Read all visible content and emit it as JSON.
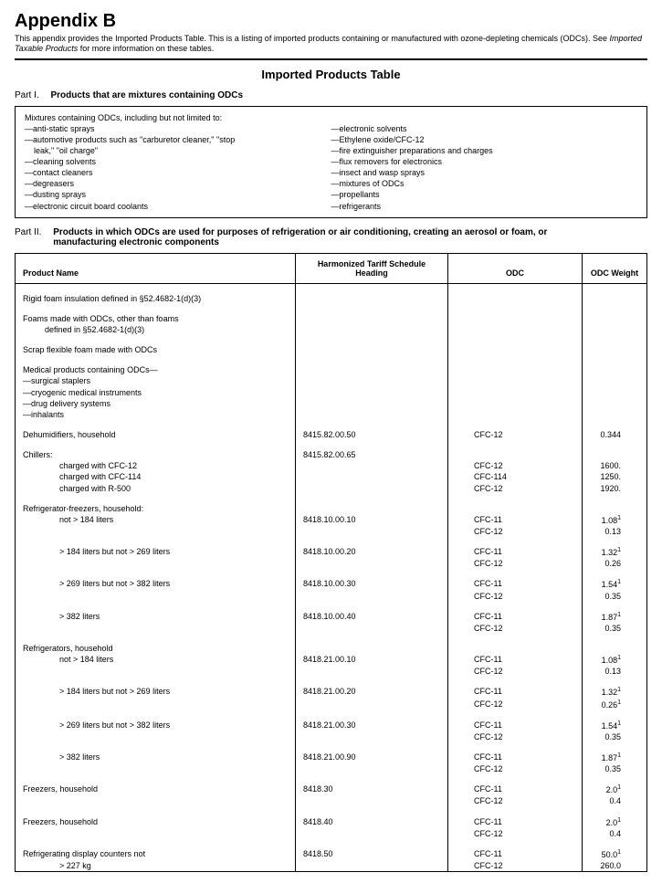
{
  "appendix": {
    "title": "Appendix B",
    "intro_before": "This appendix provides the Imported Products Table. This is a listing of imported products containing or manufactured with ozone-depleting chemicals (ODCs). See ",
    "intro_em": "Imported Taxable Products",
    "intro_after": " for more information on these tables.",
    "table_title": "Imported Products Table"
  },
  "part1": {
    "label": "Part I.",
    "desc": "Products that are mixtures containing ODCs",
    "intro": "Mixtures containing ODCs, including but not limited to:",
    "col_left": [
      "—anti-static sprays",
      "—automotive products such as \"carburetor cleaner,\" \"stop",
      "    leak,\" \"oil charge\"",
      "—cleaning solvents",
      "—contact cleaners",
      "—degreasers",
      "—dusting sprays",
      "—electronic circuit board coolants"
    ],
    "col_right": [
      "—electronic solvents",
      "—Ethylene oxide/CFC-12",
      "—fire extinguisher preparations and charges",
      "—flux removers for electronics",
      "—insect and wasp sprays",
      "—mixtures of ODCs",
      "—propellants",
      "—refrigerants"
    ]
  },
  "part2": {
    "label": "Part II.",
    "desc": "Products in which ODCs are used for purposes of refrigeration or air conditioning, creating an aerosol or foam, or manufacturing electronic components",
    "headers": {
      "name": "Product Name",
      "hts": "Harmonized Tariff Schedule Heading",
      "odc": "ODC",
      "wt": "ODC Weight"
    },
    "rows": [
      {
        "type": "spacer"
      },
      {
        "name": "Rigid foam insulation defined in §52.4682-1(d)(3)",
        "hts": "",
        "odc": "",
        "wt": ""
      },
      {
        "type": "spacer"
      },
      {
        "name": "Foams made with ODCs, other than foams",
        "hts": "",
        "odc": "",
        "wt": ""
      },
      {
        "name_indent": 1,
        "name": "defined in §52.4682-1(d)(3)",
        "hts": "",
        "odc": "",
        "wt": ""
      },
      {
        "type": "spacer"
      },
      {
        "name": "Scrap flexible foam made with ODCs",
        "hts": "",
        "odc": "",
        "wt": ""
      },
      {
        "type": "spacer"
      },
      {
        "name": "Medical products containing ODCs—",
        "hts": "",
        "odc": "",
        "wt": ""
      },
      {
        "name": "—surgical staplers",
        "hts": "",
        "odc": "",
        "wt": ""
      },
      {
        "name": "—cryogenic medical instruments",
        "hts": "",
        "odc": "",
        "wt": ""
      },
      {
        "name": "—drug delivery systems",
        "hts": "",
        "odc": "",
        "wt": ""
      },
      {
        "name": "—inhalants",
        "hts": "",
        "odc": "",
        "wt": ""
      },
      {
        "type": "spacer"
      },
      {
        "name": "Dehumidifiers, household",
        "hts": "8415.82.00.50",
        "odc": "CFC-12",
        "wt": "0.344"
      },
      {
        "type": "spacer"
      },
      {
        "name": "Chillers:",
        "hts": "8415.82.00.65",
        "odc": "",
        "wt": ""
      },
      {
        "name_indent": 2,
        "name": "charged with CFC-12",
        "hts": "",
        "odc": "CFC-12",
        "wt": "1600."
      },
      {
        "name_indent": 2,
        "name": "charged with CFC-114",
        "hts": "",
        "odc": "CFC-114",
        "wt": "1250."
      },
      {
        "name_indent": 2,
        "name": "charged with R-500",
        "hts": "",
        "odc": "CFC-12",
        "wt": "1920."
      },
      {
        "type": "spacer"
      },
      {
        "name": "Refrigerator-freezers, household:",
        "hts": "",
        "odc": "",
        "wt": ""
      },
      {
        "name_indent": 2,
        "name": "not > 184 liters",
        "hts": "8418.10.00.10",
        "odc": "CFC-11",
        "wt": "1.08",
        "sup": "1"
      },
      {
        "name": "",
        "hts": "",
        "odc": "CFC-12",
        "wt": "0.13"
      },
      {
        "type": "halfspacer"
      },
      {
        "name_indent": 2,
        "name": "> 184 liters but not > 269 liters",
        "hts": "8418.10.00.20",
        "odc": "CFC-11",
        "wt": "1.32",
        "sup": "1"
      },
      {
        "name": "",
        "hts": "",
        "odc": "CFC-12",
        "wt": "0.26"
      },
      {
        "type": "halfspacer"
      },
      {
        "name_indent": 2,
        "name": "> 269 liters but not > 382 liters",
        "hts": "8418.10.00.30",
        "odc": "CFC-11",
        "wt": "1.54",
        "sup": "1"
      },
      {
        "name": "",
        "hts": "",
        "odc": "CFC-12",
        "wt": "0.35"
      },
      {
        "type": "halfspacer"
      },
      {
        "name_indent": 2,
        "name": "> 382 liters",
        "hts": "8418.10.00.40",
        "odc": "CFC-11",
        "wt": "1.87",
        "sup": "1"
      },
      {
        "name": "",
        "hts": "",
        "odc": "CFC-12",
        "wt": "0.35"
      },
      {
        "type": "halfspacer"
      },
      {
        "name": "Refrigerators, household",
        "hts": "",
        "odc": "",
        "wt": ""
      },
      {
        "name_indent": 2,
        "name": "not > 184 liters",
        "hts": "8418.21.00.10",
        "odc": "CFC-11",
        "wt": "1.08",
        "sup": "1"
      },
      {
        "name": "",
        "hts": "",
        "odc": "CFC-12",
        "wt": "0.13"
      },
      {
        "type": "halfspacer"
      },
      {
        "name_indent": 2,
        "name": "> 184 liters but not > 269 liters",
        "hts": "8418.21.00.20",
        "odc": "CFC-11",
        "wt": "1.32",
        "sup": "1"
      },
      {
        "name": "",
        "hts": "",
        "odc": "CFC-12",
        "wt": "0.26",
        "sup": "1"
      },
      {
        "type": "halfspacer"
      },
      {
        "name_indent": 2,
        "name": "> 269 liters but not > 382 liters",
        "hts": "8418.21.00.30",
        "odc": "CFC-11",
        "wt": "1.54",
        "sup": "1"
      },
      {
        "name": "",
        "hts": "",
        "odc": "CFC-12",
        "wt": "0.35"
      },
      {
        "type": "halfspacer"
      },
      {
        "name_indent": 2,
        "name": "> 382 liters",
        "hts": "8418.21.00.90",
        "odc": "CFC-11",
        "wt": "1.87",
        "sup": "1"
      },
      {
        "name": "",
        "hts": "",
        "odc": "CFC-12",
        "wt": "0.35"
      },
      {
        "type": "halfspacer"
      },
      {
        "name": "Freezers, household",
        "hts": "8418.30",
        "odc": "CFC-11",
        "wt": "2.0",
        "sup": "1"
      },
      {
        "name": "",
        "hts": "",
        "odc": "CFC-12",
        "wt": "0.4"
      },
      {
        "type": "halfspacer"
      },
      {
        "name": "Freezers, household",
        "hts": "8418.40",
        "odc": "CFC-11",
        "wt": "2.0",
        "sup": "1"
      },
      {
        "name": "",
        "hts": "",
        "odc": "CFC-12",
        "wt": "0.4"
      },
      {
        "type": "halfspacer"
      },
      {
        "name": "Refrigerating display counters not",
        "hts": "8418.50",
        "odc": "CFC-11",
        "wt": "50.0",
        "sup": "1"
      },
      {
        "name_indent": 2,
        "name": "> 227 kg",
        "hts": "",
        "odc": "CFC-12",
        "wt": "260.0"
      }
    ]
  }
}
